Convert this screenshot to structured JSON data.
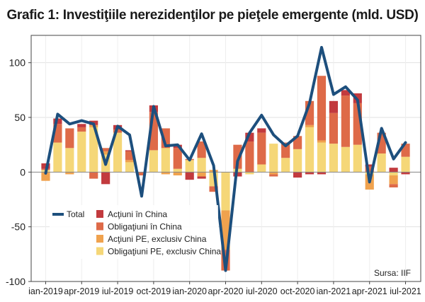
{
  "title": "Grafic 1: Investiţiile nerezidenţilor pe pieţele emergente (mld. USD)",
  "source": "Sursa: IIF",
  "chart_data": {
    "type": "bar",
    "stacked": true,
    "title": "Grafic 1: Investiţiile nerezidenţilor pe pieţele emergente (mld. USD)",
    "ylim": [
      -100,
      125
    ],
    "yticks": [
      -100,
      -50,
      0,
      50,
      100
    ],
    "grid": true,
    "legend": "bottom-left",
    "x_tick_labels": [
      {
        "index": 0,
        "label": "ian-2019"
      },
      {
        "index": 3,
        "label": "apr-2019"
      },
      {
        "index": 6,
        "label": "iul-2019"
      },
      {
        "index": 9,
        "label": "oct-2019"
      },
      {
        "index": 12,
        "label": "ian-2020"
      },
      {
        "index": 15,
        "label": "apr-2020"
      },
      {
        "index": 18,
        "label": "iul-2020"
      },
      {
        "index": 21,
        "label": "oct-2020"
      },
      {
        "index": 24,
        "label": "ian-2021"
      },
      {
        "index": 27,
        "label": "apr-2021"
      },
      {
        "index": 30,
        "label": "iul-2021"
      }
    ],
    "categories": [
      "2018-12",
      "2019-01",
      "2019-02",
      "2019-03",
      "2019-04",
      "2019-05",
      "2019-06",
      "2019-07",
      "2019-08",
      "2019-09",
      "2019-10",
      "2019-11",
      "2019-12",
      "2020-01",
      "2020-02",
      "2020-03",
      "2020-04",
      "2020-05",
      "2020-06",
      "2020-07",
      "2020-08",
      "2020-09",
      "2020-10",
      "2020-11",
      "2020-12",
      "2021-01",
      "2021-02",
      "2021-03",
      "2021-04",
      "2021-05",
      "2021-06"
    ],
    "series": [
      {
        "name": "Obligaţiuni PE, exclusiv China",
        "color": "#f5d778",
        "values": [
          2,
          27,
          22,
          37,
          41,
          16,
          36,
          9,
          0,
          20,
          22,
          3,
          11,
          13,
          -13,
          -35,
          3,
          -2,
          7,
          26,
          13,
          21,
          41,
          27,
          26,
          23,
          25,
          -2,
          17,
          -3,
          14
        ]
      },
      {
        "name": "Acţiuni PE, exclusiv China",
        "color": "#f0a24e",
        "values": [
          -8,
          0,
          -2,
          0,
          2,
          3,
          0,
          2,
          0,
          0,
          -2,
          -3,
          0,
          -4,
          2,
          -36,
          0,
          0,
          0,
          -2,
          0,
          0,
          2,
          2,
          0,
          0,
          0,
          -14,
          0,
          -8,
          0
        ]
      },
      {
        "name": "Obligaţiuni în China",
        "color": "#de6a48",
        "values": [
          1,
          17,
          18,
          4,
          -6,
          3,
          3,
          8,
          -3,
          35,
          18,
          19,
          1,
          15,
          -5,
          -19,
          22,
          28,
          29,
          -2,
          14,
          12,
          22,
          59,
          28,
          47,
          38,
          5,
          19,
          -3,
          12
        ]
      },
      {
        "name": "Acţiuni în China",
        "color": "#c23a3e",
        "values": [
          5,
          5,
          0,
          3,
          4,
          -11,
          4,
          1,
          0,
          6,
          0,
          3,
          -7,
          -2,
          0,
          0,
          -4,
          8,
          4,
          0,
          0,
          -5,
          -2,
          -2,
          11,
          5,
          9,
          2,
          0,
          4,
          -2
        ]
      }
    ],
    "total": {
      "name": "Total",
      "color": "#1d4f7d",
      "values": [
        -1,
        53,
        44,
        47,
        44,
        7,
        42,
        34,
        -22,
        60,
        24,
        25,
        11,
        35,
        6,
        -90,
        10,
        36,
        52,
        34,
        24,
        33,
        63,
        114,
        71,
        78,
        66,
        -9,
        40,
        12,
        27
      ]
    }
  }
}
